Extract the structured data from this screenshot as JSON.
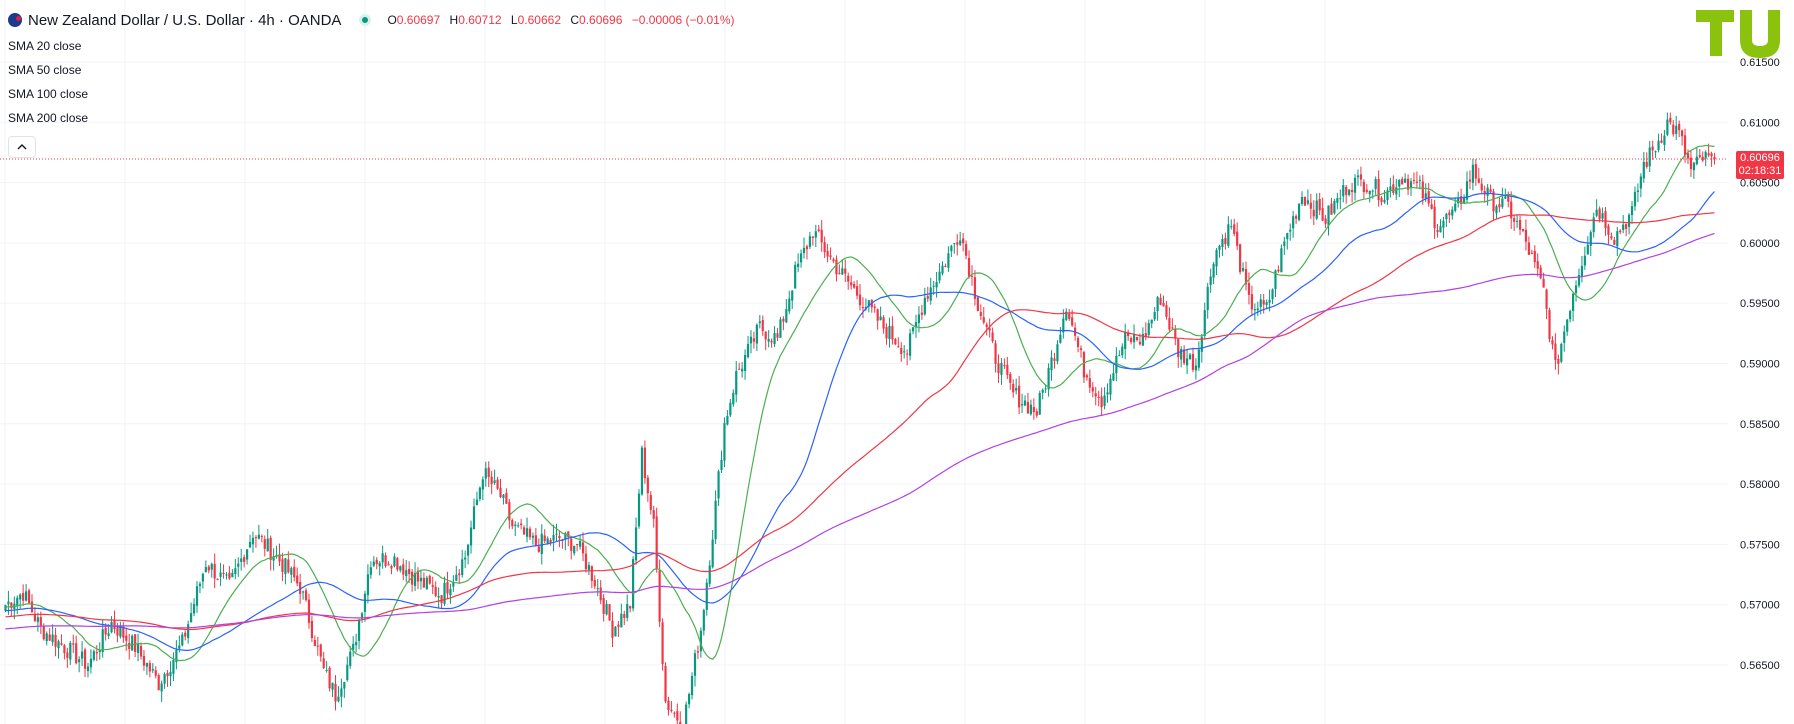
{
  "header": {
    "symbol": "New Zealand Dollar / U.S. Dollar · 4h · OANDA",
    "open_label": "O",
    "open_value": "0.60697",
    "high_label": "H",
    "high_value": "0.60712",
    "low_label": "L",
    "low_value": "0.60662",
    "close_label": "C",
    "close_value": "0.60696",
    "change": "−0.00006 (−0.01%)"
  },
  "indicators": [
    {
      "name": "SMA",
      "param": "20 close",
      "color": "#4caf50"
    },
    {
      "name": "SMA",
      "param": "50 close",
      "color": "#2962ff"
    },
    {
      "name": "SMA",
      "param": "100 close",
      "color": "#f23645"
    },
    {
      "name": "SMA",
      "param": "200 close",
      "color": "#b040e8"
    }
  ],
  "price_label": {
    "price": "0.60696",
    "countdown": "02:18:31",
    "color": "#f23645"
  },
  "logo": {
    "icon": "tradingview-logo",
    "color": "#8ac20e"
  },
  "colors": {
    "up": "#089981",
    "down": "#f23645",
    "grid": "#f0f3fa"
  },
  "chart_data": {
    "type": "candlestick",
    "timeframe": "4h",
    "y_ticks": [
      "0.61500",
      "0.61000",
      "0.60500",
      "0.60000",
      "0.59500",
      "0.59000",
      "0.58500",
      "0.58000",
      "0.57500",
      "0.57000",
      "0.56500"
    ],
    "ylim": [
      0.5615,
      0.6165
    ],
    "current_price": 0.60696,
    "close_anchors": [
      [
        0,
        0.57
      ],
      [
        6,
        0.571
      ],
      [
        12,
        0.568
      ],
      [
        20,
        0.5665
      ],
      [
        28,
        0.565
      ],
      [
        36,
        0.5685
      ],
      [
        44,
        0.5665
      ],
      [
        52,
        0.5635
      ],
      [
        60,
        0.5668
      ],
      [
        68,
        0.5735
      ],
      [
        76,
        0.5715
      ],
      [
        84,
        0.576
      ],
      [
        92,
        0.574
      ],
      [
        100,
        0.5715
      ],
      [
        108,
        0.5645
      ],
      [
        112,
        0.5625
      ],
      [
        118,
        0.5662
      ],
      [
        124,
        0.5738
      ],
      [
        132,
        0.5738
      ],
      [
        140,
        0.572
      ],
      [
        148,
        0.5708
      ],
      [
        156,
        0.574
      ],
      [
        162,
        0.581
      ],
      [
        168,
        0.579
      ],
      [
        172,
        0.5765
      ],
      [
        180,
        0.575
      ],
      [
        188,
        0.5755
      ],
      [
        194,
        0.575
      ],
      [
        200,
        0.572
      ],
      [
        206,
        0.568
      ],
      [
        212,
        0.57
      ],
      [
        216,
        0.5825
      ],
      [
        220,
        0.5765
      ],
      [
        224,
        0.562
      ],
      [
        230,
        0.56
      ],
      [
        236,
        0.568
      ],
      [
        240,
        0.576
      ],
      [
        244,
        0.585
      ],
      [
        248,
        0.589
      ],
      [
        256,
        0.593
      ],
      [
        262,
        0.592
      ],
      [
        268,
        0.5975
      ],
      [
        274,
        0.601
      ],
      [
        282,
        0.598
      ],
      [
        290,
        0.5955
      ],
      [
        298,
        0.593
      ],
      [
        306,
        0.591
      ],
      [
        312,
        0.5955
      ],
      [
        318,
        0.598
      ],
      [
        324,
        0.601
      ],
      [
        330,
        0.595
      ],
      [
        336,
        0.5905
      ],
      [
        342,
        0.5875
      ],
      [
        350,
        0.586
      ],
      [
        356,
        0.591
      ],
      [
        360,
        0.595
      ],
      [
        366,
        0.5895
      ],
      [
        372,
        0.587
      ],
      [
        380,
        0.592
      ],
      [
        386,
        0.592
      ],
      [
        392,
        0.5955
      ],
      [
        398,
        0.591
      ],
      [
        404,
        0.59
      ],
      [
        410,
        0.599
      ],
      [
        416,
        0.6015
      ],
      [
        422,
        0.595
      ],
      [
        428,
        0.5945
      ],
      [
        434,
        0.6
      ],
      [
        440,
        0.604
      ],
      [
        448,
        0.602
      ],
      [
        456,
        0.605
      ],
      [
        462,
        0.605
      ],
      [
        468,
        0.604
      ],
      [
        474,
        0.6055
      ],
      [
        480,
        0.6045
      ],
      [
        486,
        0.6015
      ],
      [
        492,
        0.6025
      ],
      [
        498,
        0.606
      ],
      [
        504,
        0.6035
      ],
      [
        510,
        0.603
      ],
      [
        516,
        0.6
      ],
      [
        522,
        0.596
      ],
      [
        526,
        0.5895
      ],
      [
        532,
        0.596
      ],
      [
        540,
        0.603
      ],
      [
        546,
        0.6005
      ],
      [
        552,
        0.6025
      ],
      [
        556,
        0.6065
      ],
      [
        560,
        0.608
      ],
      [
        564,
        0.61
      ],
      [
        568,
        0.609
      ],
      [
        572,
        0.606
      ],
      [
        576,
        0.607
      ],
      [
        580,
        0.6068
      ]
    ],
    "sma": [
      {
        "name": "SMA 20 close",
        "period": 20
      },
      {
        "name": "SMA 50 close",
        "period": 50
      },
      {
        "name": "SMA 100 close",
        "period": 100
      },
      {
        "name": "SMA 200 close",
        "period": 200
      }
    ]
  }
}
